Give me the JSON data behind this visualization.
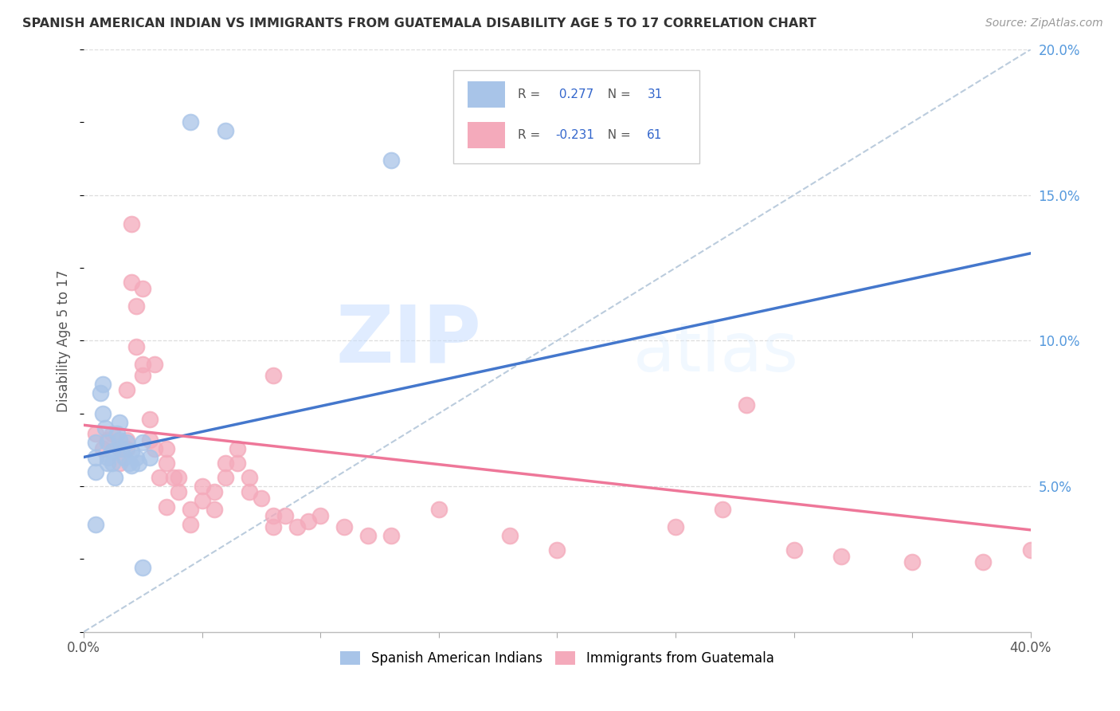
{
  "title": "SPANISH AMERICAN INDIAN VS IMMIGRANTS FROM GUATEMALA DISABILITY AGE 5 TO 17 CORRELATION CHART",
  "source": "Source: ZipAtlas.com",
  "ylabel": "Disability Age 5 to 17",
  "xlim": [
    0.0,
    0.4
  ],
  "ylim": [
    0.0,
    0.2
  ],
  "xticks": [
    0.0,
    0.05,
    0.1,
    0.15,
    0.2,
    0.25,
    0.3,
    0.35,
    0.4
  ],
  "yticks": [
    0.0,
    0.05,
    0.1,
    0.15,
    0.2
  ],
  "blue_color": "#A8C4E8",
  "pink_color": "#F4AABB",
  "blue_line_color": "#4477CC",
  "pink_line_color": "#EE7799",
  "diag_line_color": "#BBCCDD",
  "R_blue": 0.277,
  "N_blue": 31,
  "R_pink": -0.231,
  "N_pink": 61,
  "watermark_zip": "ZIP",
  "watermark_atlas": "atlas",
  "legend_label_blue": "Spanish American Indians",
  "legend_label_pink": "Immigrants from Guatemala",
  "blue_line_x": [
    0.0,
    0.4
  ],
  "blue_line_y": [
    0.06,
    0.13
  ],
  "pink_line_x": [
    0.0,
    0.4
  ],
  "pink_line_y": [
    0.071,
    0.035
  ],
  "blue_scatter_x": [
    0.005,
    0.005,
    0.005,
    0.007,
    0.008,
    0.008,
    0.009,
    0.01,
    0.01,
    0.01,
    0.012,
    0.012,
    0.013,
    0.014,
    0.015,
    0.015,
    0.016,
    0.017,
    0.018,
    0.019,
    0.02,
    0.02,
    0.022,
    0.023,
    0.025,
    0.028,
    0.06,
    0.005,
    0.025,
    0.045,
    0.13
  ],
  "blue_scatter_y": [
    0.065,
    0.06,
    0.055,
    0.082,
    0.085,
    0.075,
    0.07,
    0.065,
    0.06,
    0.058,
    0.062,
    0.058,
    0.053,
    0.068,
    0.072,
    0.066,
    0.063,
    0.06,
    0.065,
    0.058,
    0.062,
    0.057,
    0.06,
    0.058,
    0.065,
    0.06,
    0.172,
    0.037,
    0.022,
    0.175,
    0.162
  ],
  "pink_scatter_x": [
    0.005,
    0.008,
    0.01,
    0.012,
    0.015,
    0.015,
    0.018,
    0.018,
    0.02,
    0.02,
    0.022,
    0.022,
    0.025,
    0.025,
    0.025,
    0.028,
    0.028,
    0.03,
    0.03,
    0.032,
    0.035,
    0.035,
    0.038,
    0.04,
    0.04,
    0.045,
    0.045,
    0.05,
    0.05,
    0.055,
    0.055,
    0.06,
    0.06,
    0.065,
    0.065,
    0.07,
    0.07,
    0.075,
    0.08,
    0.08,
    0.085,
    0.09,
    0.095,
    0.1,
    0.11,
    0.12,
    0.13,
    0.15,
    0.18,
    0.2,
    0.25,
    0.27,
    0.3,
    0.32,
    0.35,
    0.38,
    0.4,
    0.018,
    0.035,
    0.08,
    0.28
  ],
  "pink_scatter_y": [
    0.068,
    0.063,
    0.066,
    0.068,
    0.063,
    0.058,
    0.066,
    0.063,
    0.14,
    0.12,
    0.112,
    0.098,
    0.118,
    0.092,
    0.088,
    0.073,
    0.066,
    0.063,
    0.092,
    0.053,
    0.063,
    0.058,
    0.053,
    0.053,
    0.048,
    0.042,
    0.037,
    0.05,
    0.045,
    0.048,
    0.042,
    0.058,
    0.053,
    0.063,
    0.058,
    0.053,
    0.048,
    0.046,
    0.04,
    0.036,
    0.04,
    0.036,
    0.038,
    0.04,
    0.036,
    0.033,
    0.033,
    0.042,
    0.033,
    0.028,
    0.036,
    0.042,
    0.028,
    0.026,
    0.024,
    0.024,
    0.028,
    0.083,
    0.043,
    0.088,
    0.078
  ]
}
